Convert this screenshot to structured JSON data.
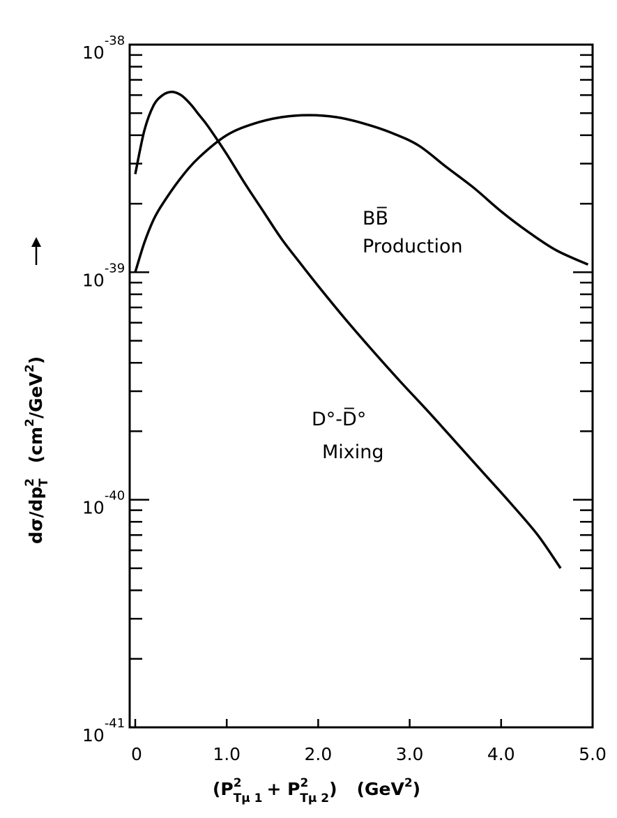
{
  "chart_data": {
    "type": "line",
    "title": "",
    "x_axis": {
      "scale": "linear",
      "range": [
        0,
        5.0
      ],
      "ticks": [
        0,
        1.0,
        2.0,
        3.0,
        4.0,
        5.0
      ],
      "tick_labels": [
        "0",
        "1.0",
        "2.0",
        "3.0",
        "4.0",
        "5.0"
      ],
      "label": {
        "main": "(P",
        "sup1": "2",
        "sub1": "Tμ 1",
        "plus": "+ P",
        "sup2": "2",
        "sub2": "Tμ 2",
        "close": ")",
        "unit": "(GeV",
        "unit_sup": "2",
        "unit_close": ")"
      }
    },
    "y_axis": {
      "scale": "log",
      "range": [
        1e-41,
        1e-38
      ],
      "major_ticks": [
        1e-41,
        1e-40,
        1e-39,
        1e-38
      ],
      "tick_labels": [
        {
          "base": "10",
          "exp": "-41"
        },
        {
          "base": "10",
          "exp": "-40"
        },
        {
          "base": "10",
          "exp": "-39"
        },
        {
          "base": "10",
          "exp": "-38"
        }
      ],
      "label": {
        "text1": "dσ/dp",
        "sup1": "2",
        "sub1": "T",
        "text2": "(cm",
        "sup2": "2",
        "text3": "/GeV",
        "sup3": "2",
        "text4": ")"
      }
    },
    "grid": false,
    "legend": "none",
    "series": [
      {
        "label_line1": "BB̅",
        "label_line2": "Production",
        "x": [
          0.0,
          0.1,
          0.2,
          0.3,
          0.5,
          0.7,
          1.0,
          1.3,
          1.6,
          1.9,
          2.2,
          2.5,
          2.8,
          3.1,
          3.4,
          3.7,
          4.0,
          4.3,
          4.6,
          4.95
        ],
        "y": [
          1e-39,
          1.35e-39,
          1.7e-39,
          2e-39,
          2.6e-39,
          3.2e-39,
          4e-39,
          4.5e-39,
          4.8e-39,
          4.9e-39,
          4.8e-39,
          4.5e-39,
          4.1e-39,
          3.6e-39,
          2.9e-39,
          2.35e-39,
          1.85e-39,
          1.5e-39,
          1.25e-39,
          1.08e-39
        ]
      },
      {
        "label_line1": "D°-D̅°",
        "label_line2": "Mixing",
        "x": [
          0.0,
          0.1,
          0.2,
          0.3,
          0.4,
          0.5,
          0.6,
          0.7,
          0.8,
          1.0,
          1.2,
          1.4,
          1.6,
          1.8,
          2.0,
          2.3,
          2.6,
          2.9,
          3.2,
          3.5,
          3.8,
          4.1,
          4.4,
          4.65
        ],
        "y": [
          2.7e-39,
          4.2e-39,
          5.4e-39,
          6e-39,
          6.2e-39,
          6e-39,
          5.5e-39,
          4.9e-39,
          4.35e-39,
          3.3e-39,
          2.45e-39,
          1.85e-39,
          1.4e-39,
          1.1e-39,
          8.7e-40,
          6.2e-40,
          4.5e-40,
          3.3e-40,
          2.45e-40,
          1.8e-40,
          1.32e-40,
          9.7e-41,
          7e-41,
          5e-41
        ]
      }
    ]
  }
}
